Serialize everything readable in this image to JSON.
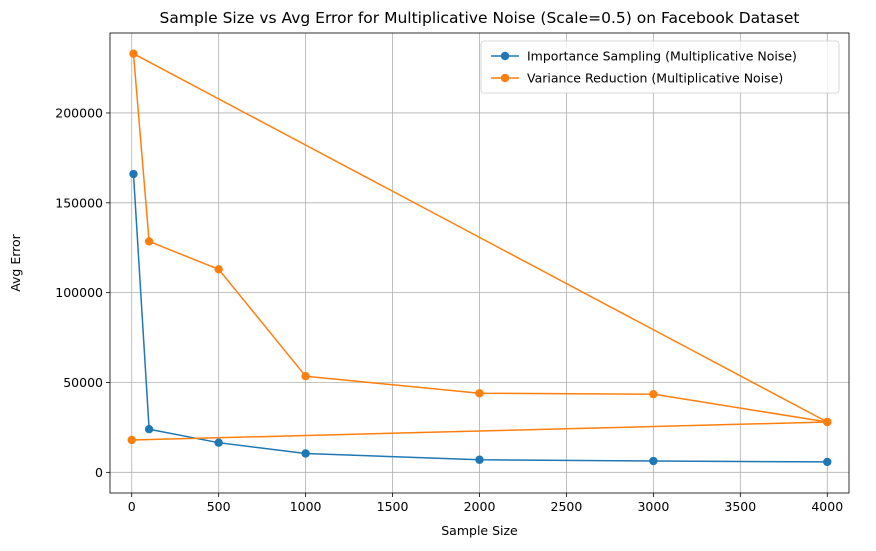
{
  "chart_data": {
    "type": "line",
    "title": "Sample Size vs Avg Error for Multiplicative Noise (Scale=0.5) on Facebook Dataset",
    "xlabel": "Sample Size",
    "ylabel": "Avg Error",
    "xlim": [
      -125,
      4125
    ],
    "ylim": [
      -11500,
      244500
    ],
    "x_ticks": [
      0,
      500,
      1000,
      1500,
      2000,
      2500,
      3000,
      3500,
      4000
    ],
    "x_tick_labels": [
      "0",
      "500",
      "1000",
      "1500",
      "2000",
      "2500",
      "3000",
      "3500",
      "4000"
    ],
    "y_ticks": [
      0,
      50000,
      100000,
      150000,
      200000
    ],
    "y_tick_labels": [
      "0",
      "50000",
      "100000",
      "150000",
      "200000"
    ],
    "grid": true,
    "legend_position": "upper right",
    "series": [
      {
        "name": "Importance Sampling (Multiplicative Noise)",
        "color": "#1f77b4",
        "marker": "circle",
        "x": [
          10,
          100,
          500,
          1000,
          2000,
          3000,
          4000
        ],
        "y": [
          166000,
          24000,
          16500,
          10500,
          7000,
          6300,
          5800
        ]
      },
      {
        "name": "Variance Reduction (Multiplicative Noise)",
        "color": "#ff7f0e",
        "marker": "circle",
        "x": [
          0,
          4000,
          10,
          100,
          500,
          1000,
          2000,
          3000,
          4000
        ],
        "y": [
          18000,
          28000,
          233000,
          128500,
          113000,
          53500,
          44000,
          43500,
          28000
        ]
      }
    ]
  }
}
